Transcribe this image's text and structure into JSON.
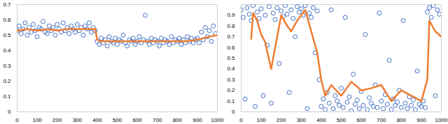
{
  "chart_data": [
    {
      "type": "scatter",
      "grid": false,
      "xlim": [
        0,
        1000
      ],
      "xticks": [
        0,
        100,
        200,
        300,
        400,
        500,
        600,
        700,
        800,
        900,
        1000
      ],
      "ylim": [
        0,
        0.7
      ],
      "yticks": [
        0,
        0.1,
        0.2,
        0.3,
        0.4,
        0.5,
        0.6,
        0.7
      ],
      "series": [
        {
          "type": "scatter",
          "color": "#4472c4",
          "marker": "circle",
          "x": [
            0,
            10,
            20,
            30,
            40,
            50,
            60,
            70,
            80,
            90,
            100,
            110,
            120,
            130,
            140,
            150,
            160,
            170,
            180,
            190,
            200,
            210,
            220,
            230,
            240,
            250,
            260,
            270,
            280,
            290,
            300,
            310,
            320,
            330,
            340,
            350,
            360,
            370,
            380,
            390,
            400,
            410,
            420,
            430,
            440,
            450,
            460,
            470,
            480,
            490,
            500,
            510,
            520,
            530,
            540,
            550,
            560,
            570,
            580,
            590,
            600,
            610,
            620,
            630,
            640,
            650,
            660,
            670,
            680,
            690,
            700,
            710,
            720,
            730,
            740,
            750,
            760,
            770,
            780,
            790,
            800,
            810,
            820,
            830,
            840,
            850,
            860,
            870,
            880,
            890,
            900,
            910,
            920,
            930,
            940,
            950,
            960,
            970,
            980,
            990
          ],
          "values": [
            0.53,
            0.56,
            0.51,
            0.54,
            0.58,
            0.5,
            0.55,
            0.52,
            0.57,
            0.53,
            0.49,
            0.55,
            0.54,
            0.59,
            0.52,
            0.51,
            0.56,
            0.53,
            0.55,
            0.5,
            0.57,
            0.54,
            0.52,
            0.58,
            0.53,
            0.55,
            0.51,
            0.56,
            0.54,
            0.52,
            0.57,
            0.53,
            0.55,
            0.5,
            0.56,
            0.54,
            0.58,
            0.52,
            0.55,
            0.53,
            0.46,
            0.44,
            0.48,
            0.45,
            0.47,
            0.43,
            0.49,
            0.46,
            0.45,
            0.48,
            0.44,
            0.47,
            0.46,
            0.5,
            0.45,
            0.43,
            0.47,
            0.46,
            0.48,
            0.44,
            0.46,
            0.49,
            0.45,
            0.47,
            0.63,
            0.46,
            0.44,
            0.48,
            0.45,
            0.47,
            0.46,
            0.43,
            0.48,
            0.45,
            0.47,
            0.46,
            0.44,
            0.49,
            0.45,
            0.47,
            0.46,
            0.48,
            0.44,
            0.47,
            0.45,
            0.49,
            0.46,
            0.48,
            0.45,
            0.47,
            0.48,
            0.45,
            0.52,
            0.47,
            0.55,
            0.49,
            0.53,
            0.46,
            0.56,
            0.51
          ]
        },
        {
          "type": "line",
          "color": "#ed7d31",
          "x": [
            0,
            50,
            100,
            150,
            200,
            250,
            300,
            350,
            390,
            400,
            420,
            450,
            500,
            550,
            600,
            650,
            700,
            750,
            800,
            850,
            900,
            930,
            960,
            1000
          ],
          "values": [
            0.53,
            0.54,
            0.53,
            0.54,
            0.53,
            0.54,
            0.54,
            0.54,
            0.54,
            0.47,
            0.46,
            0.46,
            0.46,
            0.46,
            0.46,
            0.46,
            0.46,
            0.46,
            0.46,
            0.46,
            0.47,
            0.48,
            0.49,
            0.5
          ]
        }
      ]
    },
    {
      "type": "scatter",
      "grid": false,
      "xlim": [
        0,
        1000
      ],
      "xticks": [
        0,
        100,
        200,
        300,
        400,
        500,
        600,
        700,
        800,
        900,
        1000
      ],
      "ylim": [
        0,
        1
      ],
      "yticks": [
        0,
        0.1,
        0.2,
        0.3,
        0.4,
        0.5,
        0.6,
        0.7,
        0.8,
        0.9
      ],
      "series": [
        {
          "type": "scatter",
          "color": "#4472c4",
          "marker": "circle",
          "x": [
            0,
            10,
            20,
            30,
            40,
            50,
            60,
            70,
            80,
            90,
            100,
            110,
            120,
            130,
            140,
            150,
            160,
            170,
            180,
            190,
            200,
            210,
            220,
            230,
            240,
            250,
            260,
            270,
            280,
            290,
            300,
            310,
            320,
            330,
            340,
            350,
            360,
            370,
            380,
            390,
            400,
            410,
            420,
            430,
            440,
            450,
            460,
            470,
            480,
            490,
            500,
            510,
            520,
            530,
            540,
            550,
            560,
            570,
            580,
            590,
            600,
            610,
            620,
            630,
            640,
            650,
            660,
            670,
            680,
            690,
            700,
            710,
            720,
            730,
            740,
            750,
            760,
            770,
            780,
            790,
            800,
            810,
            820,
            830,
            840,
            850,
            860,
            870,
            880,
            890,
            900,
            910,
            920,
            930,
            940,
            950,
            960,
            970,
            980,
            990
          ],
          "values": [
            0.95,
            0.88,
            0.12,
            0.97,
            0.91,
            0.85,
            0.99,
            0.05,
            0.93,
            0.87,
            0.96,
            0.15,
            0.9,
            0.62,
            0.98,
            0.08,
            0.92,
            0.86,
            0.97,
            0.45,
            0.94,
            0.89,
            0.99,
            0.91,
            0.18,
            0.95,
            0.87,
            0.7,
            0.98,
            0.93,
            0.96,
            0.9,
            0.99,
            0.03,
            0.92,
            0.88,
            0.97,
            0.55,
            0.94,
            0.3,
            0.05,
            0.12,
            0.02,
            0.18,
            0.08,
            0.95,
            0.03,
            0.15,
            0.1,
            0.06,
            0.22,
            0.04,
            0.88,
            0.09,
            0.14,
            0.01,
            0.35,
            0.07,
            0.11,
            0.03,
            0.19,
            0.06,
            0.72,
            0.02,
            0.13,
            0.08,
            0.05,
            0.25,
            0.04,
            0.92,
            0.1,
            0.03,
            0.16,
            0.07,
            0.48,
            0.02,
            0.12,
            0.06,
            0.09,
            0.2,
            0.04,
            0.85,
            0.08,
            0.03,
            0.14,
            0.06,
            0.11,
            0.02,
            0.38,
            0.07,
            0.05,
            0.1,
            0.04,
            0.93,
            0.97,
            0.88,
            0.99,
            0.15,
            0.95,
            0.91
          ]
        },
        {
          "type": "line",
          "color": "#ed7d31",
          "x": [
            50,
            60,
            80,
            100,
            120,
            150,
            170,
            200,
            230,
            250,
            280,
            320,
            350,
            380,
            400,
            420,
            450,
            500,
            550,
            600,
            650,
            700,
            750,
            800,
            850,
            900,
            930,
            940,
            970,
            1000
          ],
          "values": [
            0.68,
            0.92,
            0.85,
            0.72,
            0.65,
            0.4,
            0.6,
            0.9,
            0.8,
            0.75,
            0.85,
            0.95,
            0.75,
            0.55,
            0.3,
            0.15,
            0.25,
            0.15,
            0.28,
            0.2,
            0.22,
            0.25,
            0.1,
            0.2,
            0.15,
            0.1,
            0.3,
            0.85,
            0.75,
            0.7
          ]
        }
      ]
    }
  ]
}
